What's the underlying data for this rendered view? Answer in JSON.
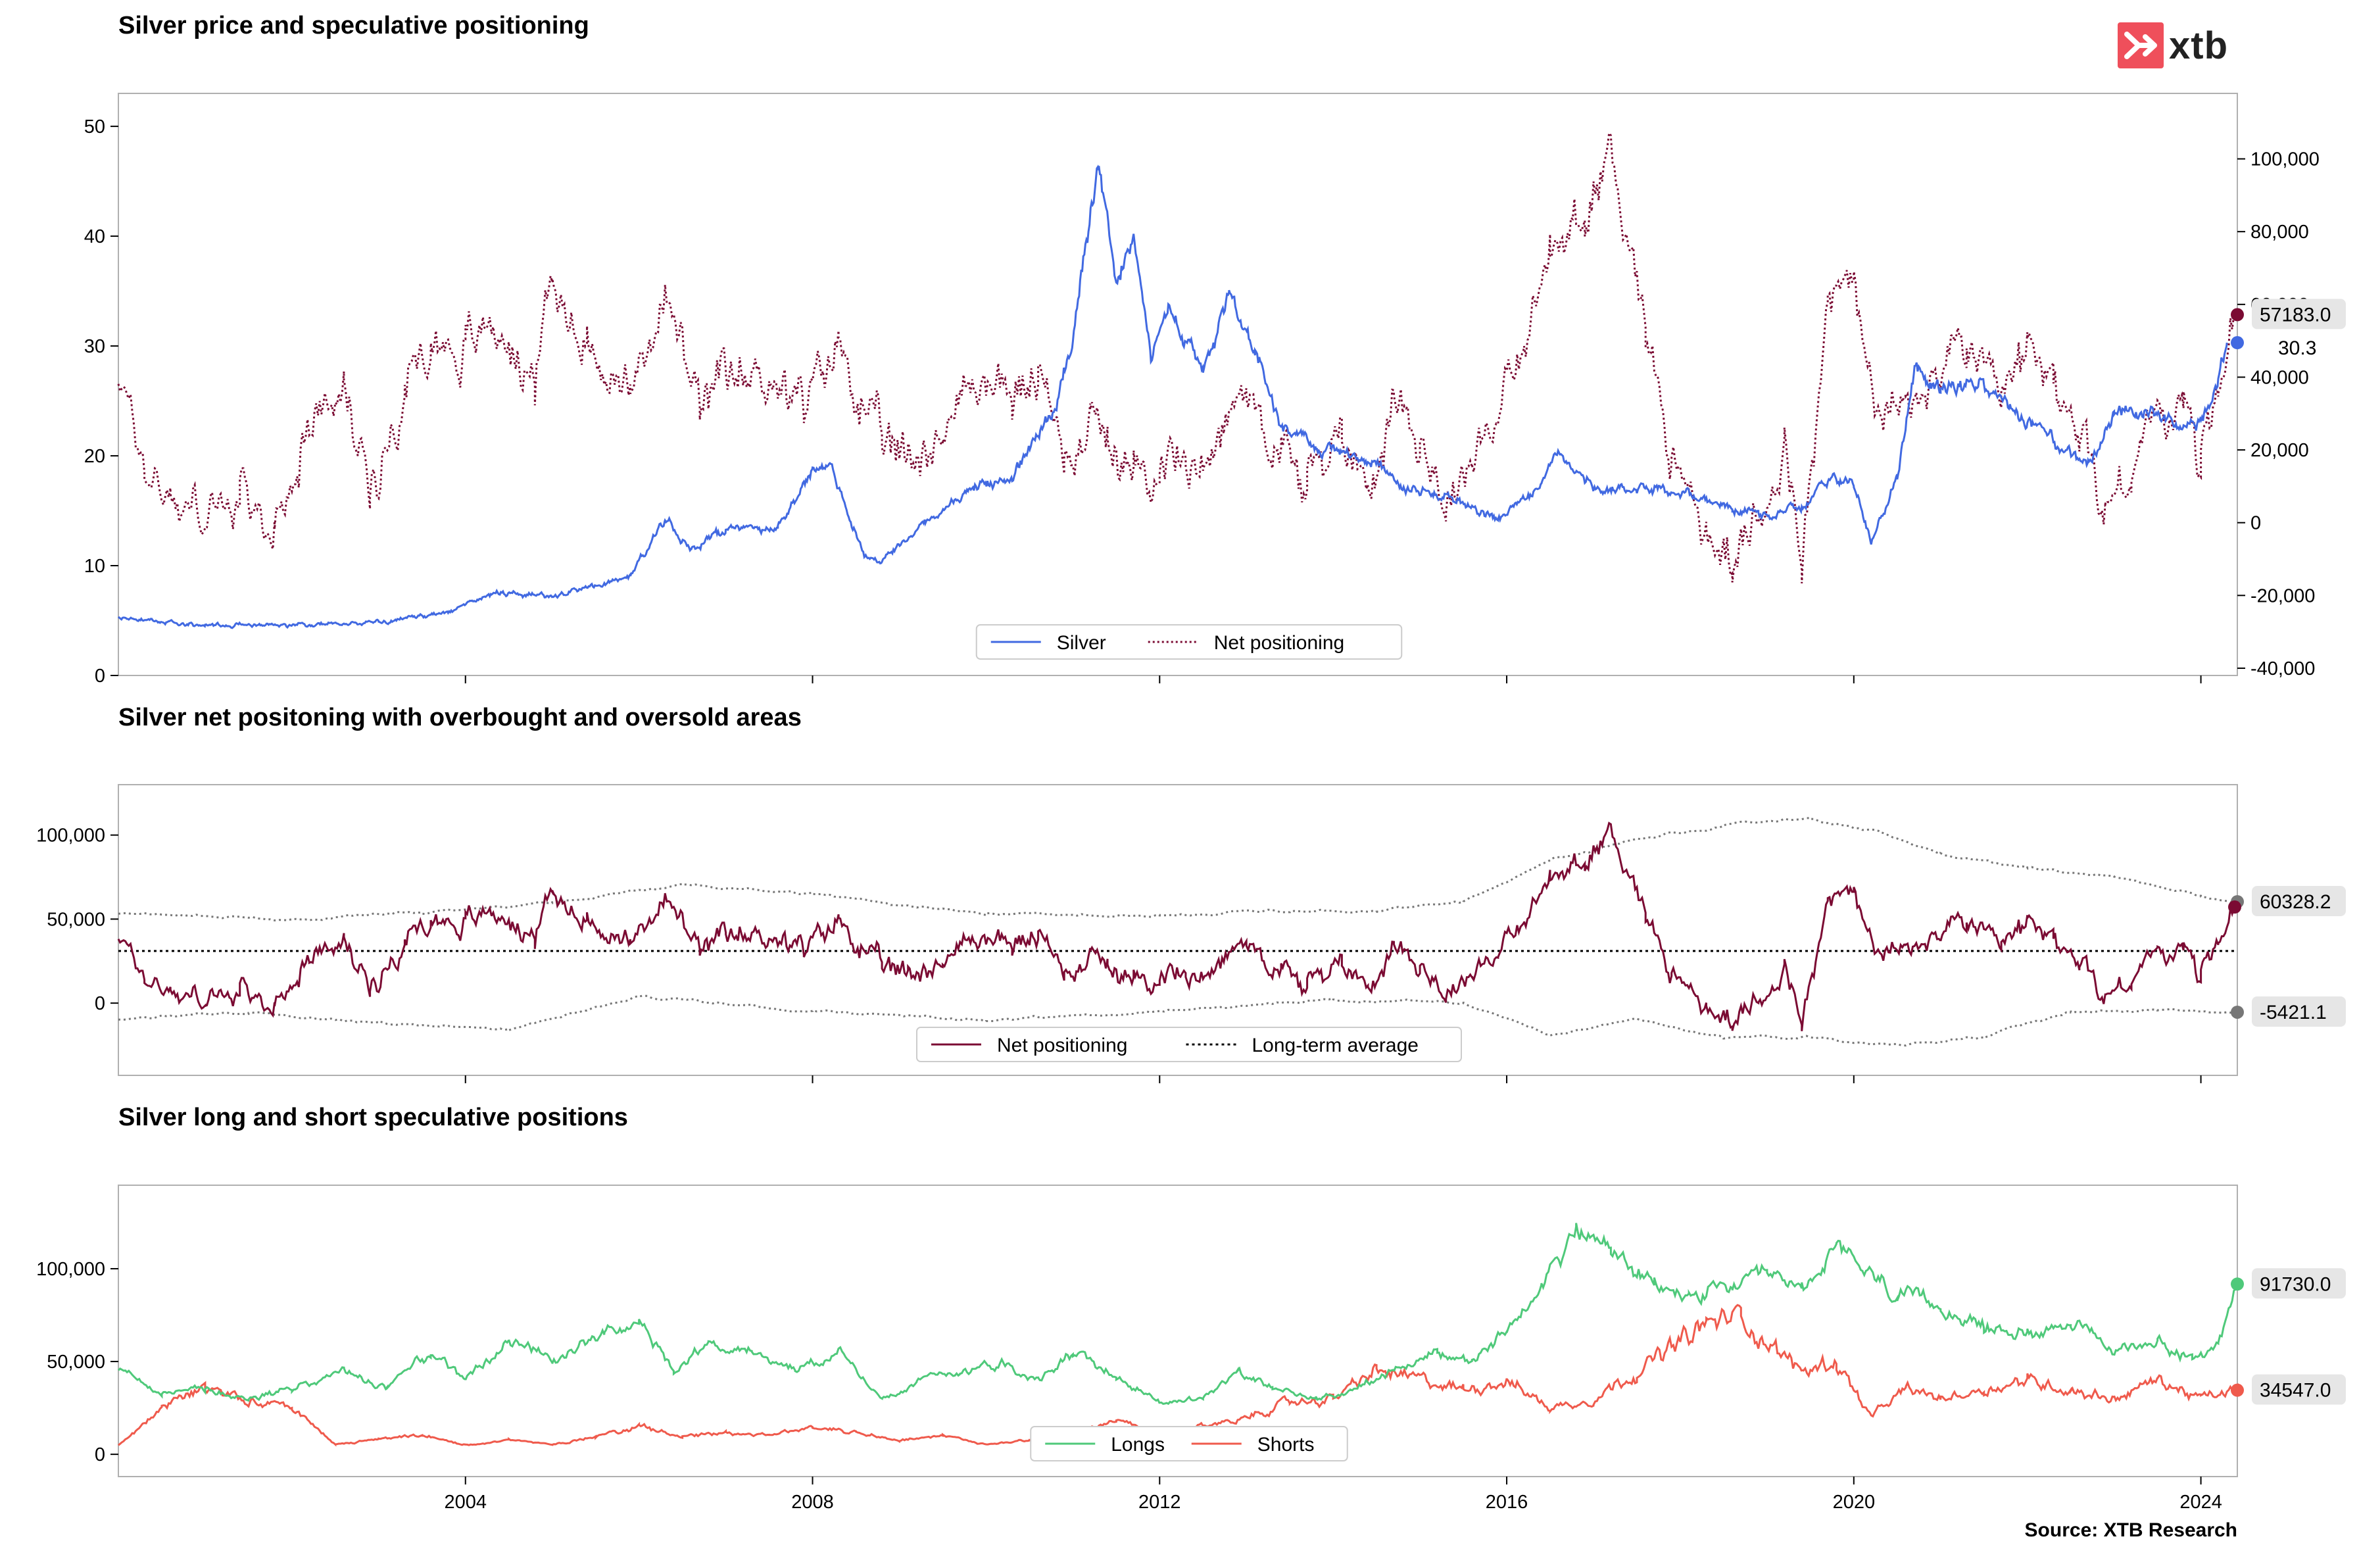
{
  "brand": {
    "logo_text": "xtb",
    "logo_color": "#ef4f5b"
  },
  "source": "Source: XTB Research",
  "colors": {
    "silver": "#4169e1",
    "net": "#7b0b33",
    "longs": "#4fc97a",
    "shorts": "#ef5a4c",
    "band": "#777777",
    "avg": "#000000"
  },
  "chart_data": [
    {
      "type": "line",
      "title": "Silver price and speculative positioning",
      "x_range": [
        2000.0,
        2024.42
      ],
      "y_left": {
        "range": [
          0,
          53
        ],
        "ticks": [
          0,
          10,
          20,
          30,
          40,
          50
        ],
        "tick_labels": [
          "0",
          "10",
          "20",
          "30",
          "40",
          "50"
        ]
      },
      "y_right": {
        "range": [
          -42000,
          118000
        ],
        "ticks": [
          -40000,
          -20000,
          0,
          20000,
          40000,
          60000,
          80000,
          100000
        ],
        "tick_labels": [
          "-40,000",
          "-20,000",
          "0",
          "20,000",
          "40,000",
          "60,000",
          "80,000",
          "100,000"
        ]
      },
      "legend": [
        "Silver",
        "Net positioning"
      ],
      "series": [
        {
          "name": "Silver",
          "axis": "left",
          "x": [
            2000.0,
            2001.0,
            2002.0,
            2003.0,
            2003.8,
            2004.3,
            2005.0,
            2005.9,
            2006.3,
            2006.6,
            2007.0,
            2007.6,
            2008.0,
            2008.2,
            2008.6,
            2008.8,
            2009.3,
            2009.8,
            2010.3,
            2010.8,
            2011.0,
            2011.3,
            2011.5,
            2011.7,
            2011.9,
            2012.1,
            2012.5,
            2012.8,
            2013.1,
            2013.4,
            2013.8,
            2014.5,
            2014.9,
            2015.3,
            2015.9,
            2016.4,
            2016.6,
            2017.0,
            2017.5,
            2018.0,
            2018.6,
            2018.9,
            2019.4,
            2019.7,
            2020.0,
            2020.2,
            2020.5,
            2020.7,
            2021.0,
            2021.5,
            2022.0,
            2022.7,
            2023.0,
            2023.4,
            2023.8,
            2024.0,
            2024.2,
            2024.3
          ],
          "y": [
            5.2,
            4.6,
            4.6,
            4.8,
            5.8,
            7.5,
            7.2,
            9.0,
            14.2,
            11.5,
            13.3,
            13.5,
            18.5,
            19.5,
            10.8,
            10.5,
            14.0,
            17.0,
            18.0,
            24.5,
            31.0,
            47.8,
            36.0,
            40.0,
            29.0,
            33.5,
            27.5,
            34.0,
            30.0,
            22.5,
            21.0,
            19.3,
            16.5,
            16.5,
            14.0,
            17.5,
            20.5,
            17.0,
            17.0,
            16.8,
            15.3,
            14.5,
            15.2,
            18.0,
            17.5,
            12.0,
            18.0,
            27.5,
            26.0,
            26.5,
            23.0,
            19.0,
            23.5,
            24.0,
            22.5,
            22.8,
            27.0,
            30.3
          ]
        },
        {
          "name": "Net positioning",
          "axis": "right",
          "x": [
            2000.0,
            2000.3,
            2000.6,
            2001.0,
            2001.4,
            2001.8,
            2002.2,
            2002.6,
            2002.9,
            2003.3,
            2003.6,
            2004.0,
            2004.3,
            2004.8,
            2005.0,
            2005.4,
            2005.9,
            2006.3,
            2006.7,
            2007.0,
            2007.5,
            2007.9,
            2008.3,
            2008.8,
            2009.1,
            2009.5,
            2009.9,
            2010.3,
            2010.6,
            2010.9,
            2011.2,
            2011.4,
            2011.7,
            2012.0,
            2012.3,
            2012.7,
            2013.0,
            2013.4,
            2013.7,
            2014.1,
            2014.4,
            2014.7,
            2015.0,
            2015.3,
            2015.6,
            2015.9,
            2016.2,
            2016.5,
            2016.9,
            2017.2,
            2017.6,
            2017.9,
            2018.3,
            2018.6,
            2018.9,
            2019.2,
            2019.4,
            2019.7,
            2020.0,
            2020.3,
            2020.6,
            2021.0,
            2021.3,
            2021.7,
            2022.0,
            2022.3,
            2022.6,
            2022.9,
            2023.2,
            2023.5,
            2023.8,
            2024.0,
            2024.2,
            2024.4
          ],
          "y": [
            42000,
            15000,
            8000,
            2000,
            5000,
            -2000,
            30000,
            35000,
            10000,
            38000,
            50000,
            48000,
            55000,
            40000,
            66000,
            50000,
            35000,
            62000,
            30000,
            38000,
            42000,
            30000,
            50000,
            20000,
            18000,
            25000,
            40000,
            35000,
            40000,
            18000,
            30000,
            25000,
            10000,
            20000,
            15000,
            25000,
            38000,
            20000,
            10000,
            25000,
            10000,
            35000,
            25000,
            5000,
            20000,
            32000,
            45000,
            75000,
            82000,
            105000,
            55000,
            20000,
            -5000,
            -10000,
            0,
            25000,
            -15000,
            60000,
            65000,
            28000,
            30000,
            42000,
            50000,
            30000,
            48000,
            35000,
            25000,
            5000,
            15000,
            30000,
            32000,
            15000,
            40000,
            57183
          ]
        }
      ],
      "end_labels": [
        "57183.0",
        "30.3"
      ]
    },
    {
      "type": "line",
      "title": "Silver net positoning with overbought and oversold areas",
      "x_range": [
        2000.0,
        2024.42
      ],
      "y": {
        "range": [
          -43000,
          130000
        ],
        "ticks": [
          0,
          50000,
          100000
        ],
        "tick_labels": [
          "0",
          "50,000",
          "100,000"
        ]
      },
      "legend": [
        "Net positioning",
        "Long-term average"
      ],
      "long_term_average": 31000,
      "series": [
        {
          "name": "Net positioning",
          "x": [
            2000.0,
            2000.3,
            2000.6,
            2001.0,
            2001.4,
            2001.8,
            2002.2,
            2002.6,
            2002.9,
            2003.3,
            2003.6,
            2004.0,
            2004.3,
            2004.8,
            2005.0,
            2005.4,
            2005.9,
            2006.3,
            2006.7,
            2007.0,
            2007.5,
            2007.9,
            2008.3,
            2008.8,
            2009.1,
            2009.5,
            2009.9,
            2010.3,
            2010.6,
            2010.9,
            2011.2,
            2011.4,
            2011.7,
            2012.0,
            2012.3,
            2012.7,
            2013.0,
            2013.4,
            2013.7,
            2014.1,
            2014.4,
            2014.7,
            2015.0,
            2015.3,
            2015.6,
            2015.9,
            2016.2,
            2016.5,
            2016.9,
            2017.2,
            2017.6,
            2017.9,
            2018.3,
            2018.6,
            2018.9,
            2019.2,
            2019.4,
            2019.7,
            2020.0,
            2020.3,
            2020.6,
            2021.0,
            2021.3,
            2021.7,
            2022.0,
            2022.3,
            2022.6,
            2022.9,
            2023.2,
            2023.5,
            2023.8,
            2024.0,
            2024.2,
            2024.4
          ],
          "y": [
            42000,
            15000,
            8000,
            2000,
            5000,
            -2000,
            30000,
            35000,
            10000,
            38000,
            50000,
            48000,
            55000,
            40000,
            66000,
            50000,
            35000,
            62000,
            30000,
            38000,
            42000,
            30000,
            50000,
            20000,
            18000,
            25000,
            40000,
            35000,
            40000,
            18000,
            30000,
            25000,
            10000,
            20000,
            15000,
            25000,
            38000,
            20000,
            10000,
            25000,
            10000,
            35000,
            25000,
            5000,
            20000,
            32000,
            45000,
            75000,
            82000,
            105000,
            55000,
            20000,
            -5000,
            -10000,
            0,
            25000,
            -15000,
            60000,
            65000,
            28000,
            30000,
            42000,
            50000,
            30000,
            48000,
            35000,
            25000,
            5000,
            15000,
            30000,
            32000,
            15000,
            40000,
            57183
          ]
        },
        {
          "name": "Upper band",
          "x": [
            2000.0,
            2002.0,
            2003.5,
            2005.0,
            2006.5,
            2008.0,
            2010.0,
            2012.0,
            2013.5,
            2014.5,
            2015.5,
            2016.5,
            2017.5,
            2018.5,
            2019.5,
            2020.3,
            2021.0,
            2022.0,
            2023.0,
            2024.0,
            2024.42
          ],
          "y": [
            53000,
            50000,
            54000,
            60000,
            70000,
            65000,
            53000,
            52000,
            55000,
            55000,
            60000,
            85000,
            97000,
            106000,
            110000,
            102000,
            88000,
            80000,
            75000,
            64000,
            60328
          ]
        },
        {
          "name": "Lower band",
          "x": [
            2000.0,
            2001.5,
            2003.0,
            2004.5,
            2006.0,
            2008.0,
            2010.0,
            2012.0,
            2014.0,
            2015.5,
            2016.5,
            2017.5,
            2018.5,
            2019.5,
            2020.5,
            2021.5,
            2022.5,
            2023.5,
            2024.42
          ],
          "y": [
            -10000,
            -5000,
            -12000,
            -15000,
            4000,
            -5000,
            -10000,
            -5000,
            2000,
            0,
            -18000,
            -10000,
            -20000,
            -20000,
            -25000,
            -20000,
            -5000,
            -4000,
            -5421
          ]
        }
      ],
      "end_labels": [
        "60328.2",
        "-5421.1"
      ]
    },
    {
      "type": "line",
      "title": "Silver long and short speculative positions",
      "x_range": [
        2000.0,
        2024.42
      ],
      "y": {
        "range": [
          -12000,
          145000
        ],
        "ticks": [
          0,
          50000,
          100000
        ],
        "tick_labels": [
          "0",
          "50,000",
          "100,000"
        ]
      },
      "x_ticks": [
        2004,
        2008,
        2012,
        2016,
        2020,
        2024
      ],
      "x_tick_labels": [
        "2004",
        "2008",
        "2012",
        "2016",
        "2020",
        "2024"
      ],
      "legend": [
        "Longs",
        "Shorts"
      ],
      "series": [
        {
          "name": "Longs",
          "x": [
            2000.0,
            2000.5,
            2001.0,
            2001.5,
            2002.0,
            2002.6,
            2003.1,
            2003.6,
            2004.0,
            2004.5,
            2005.0,
            2005.6,
            2006.0,
            2006.4,
            2006.8,
            2007.3,
            2007.8,
            2008.3,
            2008.8,
            2009.2,
            2009.7,
            2010.2,
            2010.6,
            2011.0,
            2011.5,
            2012.0,
            2012.5,
            2012.9,
            2013.3,
            2013.8,
            2014.2,
            2014.7,
            2015.2,
            2015.6,
            2016.0,
            2016.4,
            2016.8,
            2017.2,
            2017.7,
            2018.1,
            2018.6,
            2019.0,
            2019.4,
            2019.8,
            2020.1,
            2020.5,
            2021.0,
            2021.5,
            2022.0,
            2022.5,
            2023.0,
            2023.5,
            2023.9,
            2024.2,
            2024.42
          ],
          "y": [
            45000,
            32000,
            35000,
            30000,
            35000,
            45000,
            35000,
            55000,
            40000,
            60000,
            50000,
            65000,
            70000,
            45000,
            60000,
            55000,
            45000,
            55000,
            30000,
            40000,
            45000,
            50000,
            40000,
            55000,
            42000,
            28000,
            30000,
            45000,
            35000,
            30000,
            35000,
            45000,
            55000,
            50000,
            65000,
            95000,
            120000,
            110000,
            90000,
            85000,
            90000,
            95000,
            90000,
            110000,
            100000,
            85000,
            80000,
            68000,
            65000,
            72000,
            55000,
            62000,
            50000,
            60000,
            91730
          ]
        },
        {
          "name": "Shorts",
          "x": [
            2000.0,
            2000.5,
            2001.0,
            2001.5,
            2002.0,
            2002.5,
            2003.0,
            2003.5,
            2004.0,
            2004.5,
            2005.0,
            2005.5,
            2006.0,
            2006.5,
            2007.0,
            2007.5,
            2008.0,
            2008.5,
            2009.0,
            2009.5,
            2010.0,
            2010.5,
            2011.0,
            2011.5,
            2012.0,
            2012.5,
            2013.0,
            2013.5,
            2014.0,
            2014.5,
            2015.0,
            2015.5,
            2016.0,
            2016.5,
            2017.0,
            2017.5,
            2018.0,
            2018.3,
            2018.7,
            2019.0,
            2019.4,
            2019.8,
            2020.2,
            2020.6,
            2021.0,
            2021.5,
            2022.0,
            2022.5,
            2023.0,
            2023.5,
            2024.0,
            2024.42
          ],
          "y": [
            5000,
            25000,
            35000,
            30000,
            25000,
            5000,
            8000,
            10000,
            5000,
            8000,
            5000,
            10000,
            15000,
            10000,
            12000,
            10000,
            15000,
            12000,
            8000,
            10000,
            5000,
            8000,
            12000,
            18000,
            10000,
            15000,
            20000,
            28000,
            30000,
            45000,
            40000,
            35000,
            40000,
            25000,
            30000,
            45000,
            60000,
            70000,
            75000,
            60000,
            45000,
            50000,
            20000,
            35000,
            30000,
            35000,
            40000,
            35000,
            30000,
            40000,
            30000,
            34547
          ]
        }
      ],
      "end_labels": [
        "91730.0",
        "34547.0"
      ]
    }
  ]
}
